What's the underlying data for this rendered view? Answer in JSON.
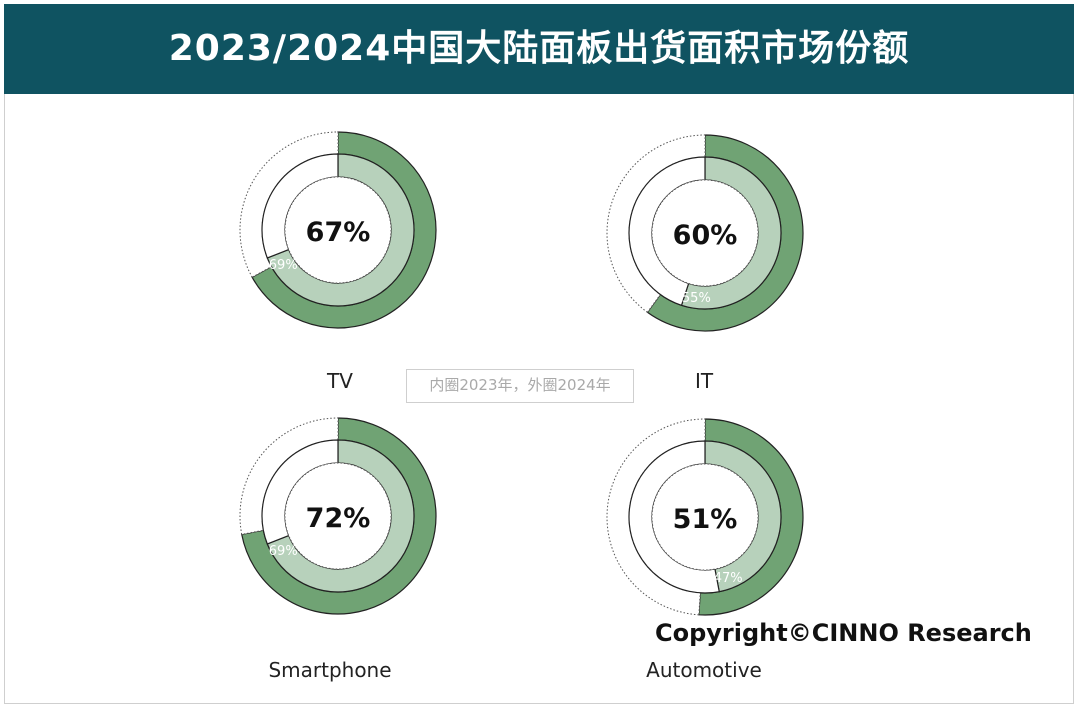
{
  "title": "2023/2024中国大陆面板出货面积市场份额",
  "legend_note": "内圈2023年，外圈2024年",
  "copyright": "Copyright©CINNO Research",
  "colors": {
    "header_bg": "#0f5361",
    "outer_fill": "#70a374",
    "inner_fill": "#b7d1bb"
  },
  "chart_data": [
    {
      "type": "pie",
      "category": "TV",
      "label": "TV",
      "outer_2024": 67,
      "inner_2023": 69,
      "outer_label": "67%",
      "inner_label": "69%"
    },
    {
      "type": "pie",
      "category": "IT",
      "label": "IT",
      "outer_2024": 60,
      "inner_2023": 55,
      "outer_label": "60%",
      "inner_label": "55%"
    },
    {
      "type": "pie",
      "category": "Smartphone",
      "label": "Smartphone",
      "outer_2024": 72,
      "inner_2023": 69,
      "outer_label": "72%",
      "inner_label": "69%"
    },
    {
      "type": "pie",
      "category": "Automotive",
      "label": "Automotive",
      "outer_2024": 51,
      "inner_2023": 47,
      "outer_label": "51%",
      "inner_label": "47%"
    }
  ]
}
